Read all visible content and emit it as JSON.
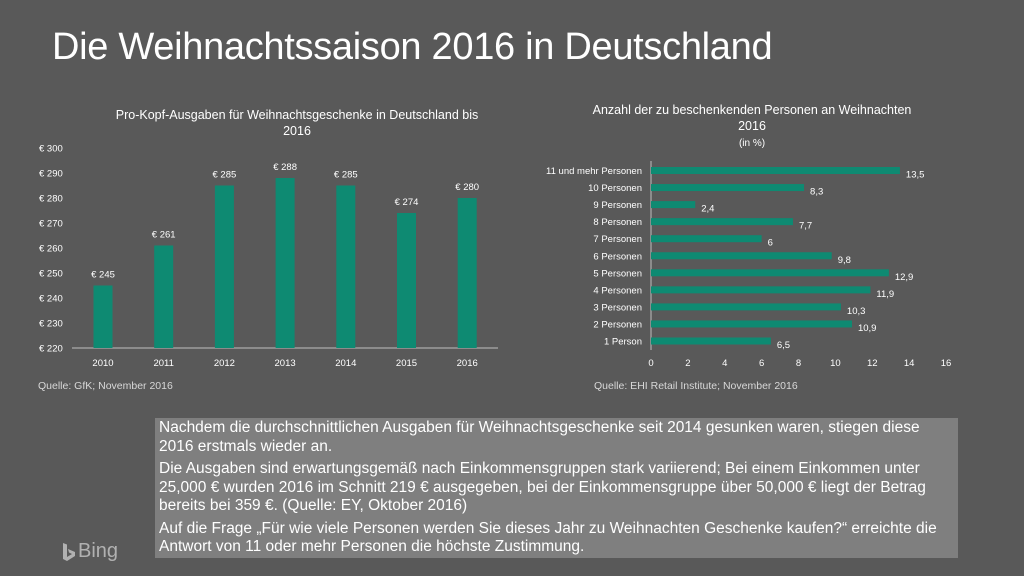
{
  "title": "Die Weihnachtssaison 2016 in Deutschland",
  "colors": {
    "background": "#595959",
    "bar": "#0e8a72",
    "textbox": "#7f7f7f"
  },
  "chart_data": [
    {
      "type": "bar",
      "title": "Pro-Kopf-Ausgaben für Weihnachtsgeschenke in Deutschland bis 2016",
      "title_lines": [
        "Pro-Kopf-Ausgaben für Weihnachtsgeschenke in Deutschland bis",
        "2016"
      ],
      "categories": [
        "2010",
        "2011",
        "2012",
        "2013",
        "2014",
        "2015",
        "2016"
      ],
      "values": [
        245,
        261,
        285,
        288,
        285,
        274,
        280
      ],
      "data_labels": [
        "€ 245",
        "€ 261",
        "€ 285",
        "€ 288",
        "€ 285",
        "€ 274",
        "€ 280"
      ],
      "ylim": [
        220,
        300
      ],
      "yticks": [
        220,
        230,
        240,
        250,
        260,
        270,
        280,
        290,
        300
      ],
      "ytick_labels": [
        "€ 220",
        "€ 230",
        "€ 240",
        "€ 250",
        "€ 260",
        "€ 270",
        "€ 280",
        "€ 290",
        "€ 300"
      ],
      "grid": false,
      "source": "Quelle: GfK; November 2016"
    },
    {
      "type": "bar",
      "orientation": "horizontal",
      "title": "Anzahl der zu beschenkenden Personen an Weihnachten 2016",
      "title_lines": [
        "Anzahl der zu beschenkenden Personen an Weihnachten",
        "2016"
      ],
      "subtitle": "(in %)",
      "categories": [
        "11 und mehr Personen",
        "10 Personen",
        "9 Personen",
        "8 Personen",
        "7 Personen",
        "6 Personen",
        "5 Personen",
        "4 Personen",
        "3 Personen",
        "2 Personen",
        "1 Person"
      ],
      "values": [
        13.5,
        8.3,
        2.4,
        7.7,
        6,
        9.8,
        12.9,
        11.9,
        10.3,
        10.9,
        6.5
      ],
      "data_labels": [
        "13,5",
        "8,3",
        "2,4",
        "7,7",
        "6",
        "9,8",
        "12,9",
        "11,9",
        "10,3",
        "10,9",
        "6,5"
      ],
      "xlim": [
        0,
        16
      ],
      "xticks": [
        "0",
        "2",
        "4",
        "6",
        "8",
        "10",
        "12",
        "14",
        "16"
      ],
      "grid": false,
      "source": "Quelle: EHI Retail Institute; November 2016"
    }
  ],
  "textbox": {
    "paragraphs": [
      "Nachdem die durchschnittlichen Ausgaben für Weihnachtsgeschenke seit 2014 gesunken waren, stiegen diese 2016 erstmals wieder an.",
      "Die Ausgaben sind erwartungsgemäß nach Einkommensgruppen stark variierend; Bei einem Einkommen unter 25,000 € wurden 2016 im Schnitt 219 € ausgegeben, bei der Einkommensgruppe über 50,000 € liegt der Betrag bereits bei 359 €. (Quelle: EY, Oktober 2016)",
      "Auf die Frage „Für wie viele Personen werden Sie dieses Jahr zu Weihnachten Geschenke kaufen?“ erreichte die Antwort von 11 oder mehr Personen die höchste Zustimmung."
    ]
  },
  "watermark": {
    "text": "Bing",
    "icon": "bing-logo-icon"
  }
}
